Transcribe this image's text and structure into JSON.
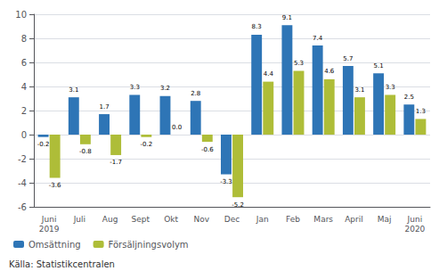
{
  "chart_data": {
    "type": "bar",
    "categories": [
      "Juni\n2019",
      "Juli",
      "Aug",
      "Sept",
      "Okt",
      "Nov",
      "Dec",
      "Jan",
      "Feb",
      "Mars",
      "April",
      "Maj",
      "Juni\n2020"
    ],
    "series": [
      {
        "name": "Omsättning",
        "color": "#2E75B6",
        "values": [
          -0.2,
          3.1,
          1.7,
          3.3,
          3.2,
          2.8,
          -3.3,
          8.3,
          9.1,
          7.4,
          5.7,
          5.1,
          2.5
        ]
      },
      {
        "name": "Försäljningsvolym",
        "color": "#AEBD38",
        "values": [
          -3.6,
          -0.8,
          -1.7,
          -0.2,
          0.0,
          -0.6,
          -5.2,
          4.4,
          5.3,
          4.6,
          3.1,
          3.3,
          1.3
        ],
        "value_labels": [
          "-3.6",
          "-0.8",
          "-1.7",
          "-0.2",
          "0.0",
          "-0.6",
          "-5.2",
          "4.4",
          "5.3",
          "4.6",
          "3.1",
          "3.3",
          "1.3"
        ]
      }
    ],
    "ylim": [
      -6,
      10
    ],
    "yticks": [
      -6,
      -4,
      -2,
      0,
      2,
      4,
      6,
      8,
      10
    ],
    "grid": true,
    "data_labels": true,
    "legend": "lower left",
    "annotations": [
      "Källa: Statistikcentralen"
    ]
  }
}
